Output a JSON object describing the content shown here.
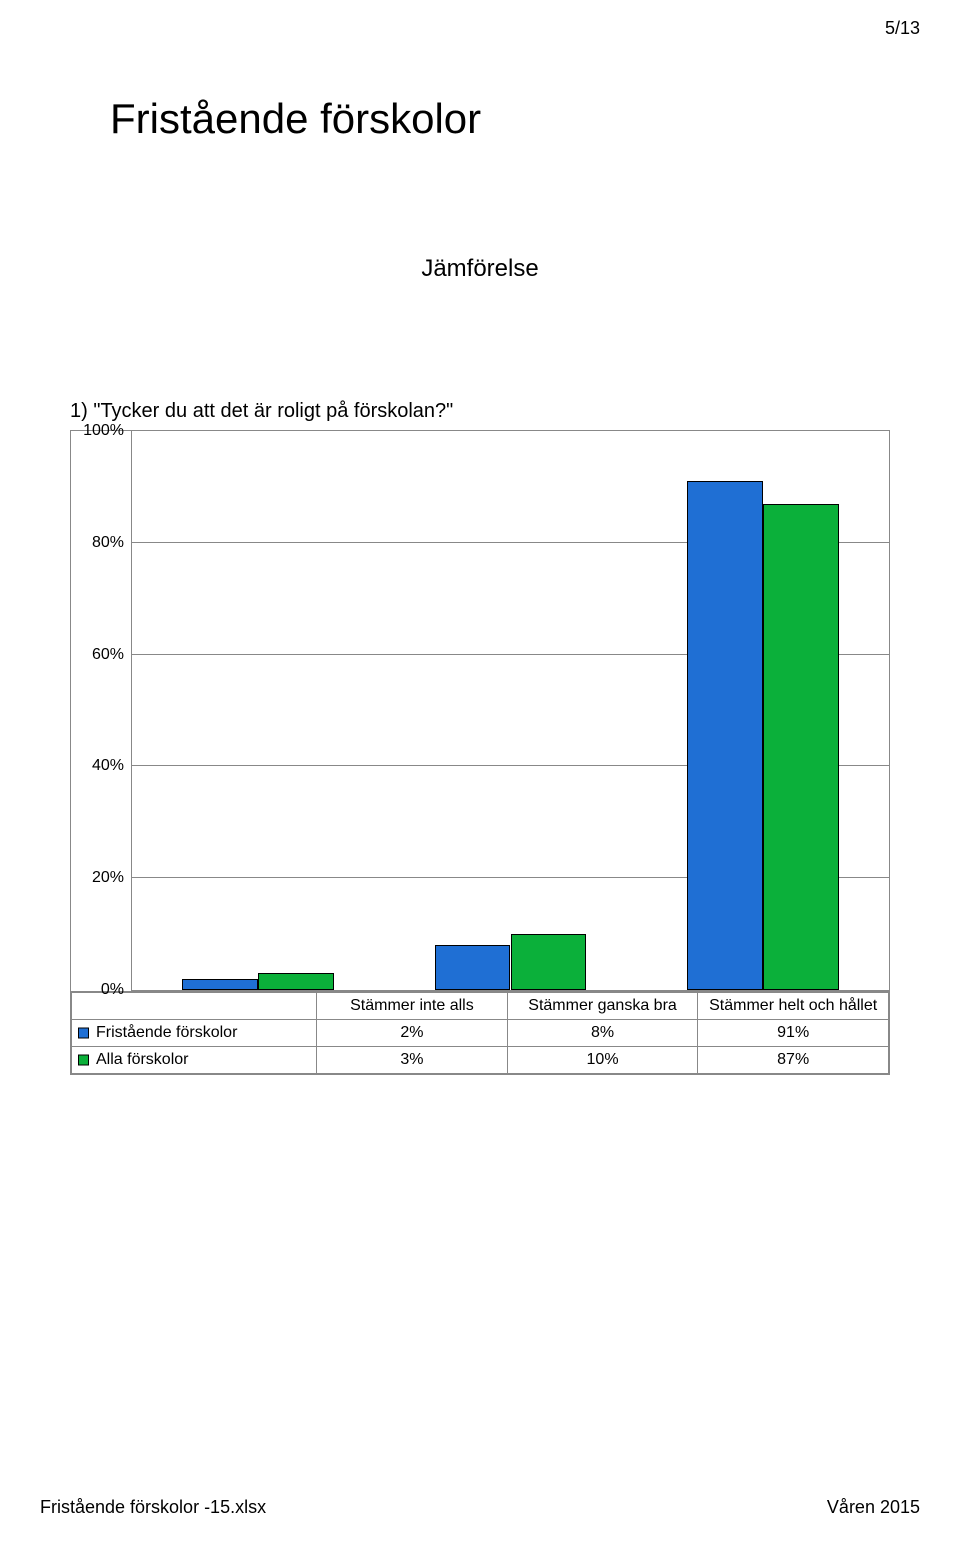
{
  "page_number": "5/13",
  "title": "Fristående förskolor",
  "subtitle": "Jämförelse",
  "question": "1) \"Tycker du att det är roligt på förskolan?\"",
  "footer_left": "Fristående förskolor -15.xlsx",
  "footer_right": "Våren 2015",
  "chart": {
    "type": "bar",
    "ylim": [
      0,
      100
    ],
    "ytick_step": 20,
    "ytick_labels": [
      "0%",
      "20%",
      "40%",
      "60%",
      "80%",
      "100%"
    ],
    "categories": [
      "Stämmer inte alls",
      "Stämmer ganska bra",
      "Stämmer helt och hållet"
    ],
    "series": [
      {
        "name": "Fristående förskolor",
        "color": "#1f6fd4",
        "values": [
          2,
          8,
          91
        ]
      },
      {
        "name": "Alla förskolor",
        "color": "#0bb03a",
        "values": [
          3,
          10,
          87
        ]
      }
    ],
    "value_labels": [
      [
        "2%",
        "8%",
        "91%"
      ],
      [
        "3%",
        "10%",
        "87%"
      ]
    ],
    "bar_width_pct": 10.0,
    "grid_color": "#888888",
    "background_color": "#ffffff",
    "label_col_width_pct": 30,
    "cat_col_width_pct": 23.33
  }
}
